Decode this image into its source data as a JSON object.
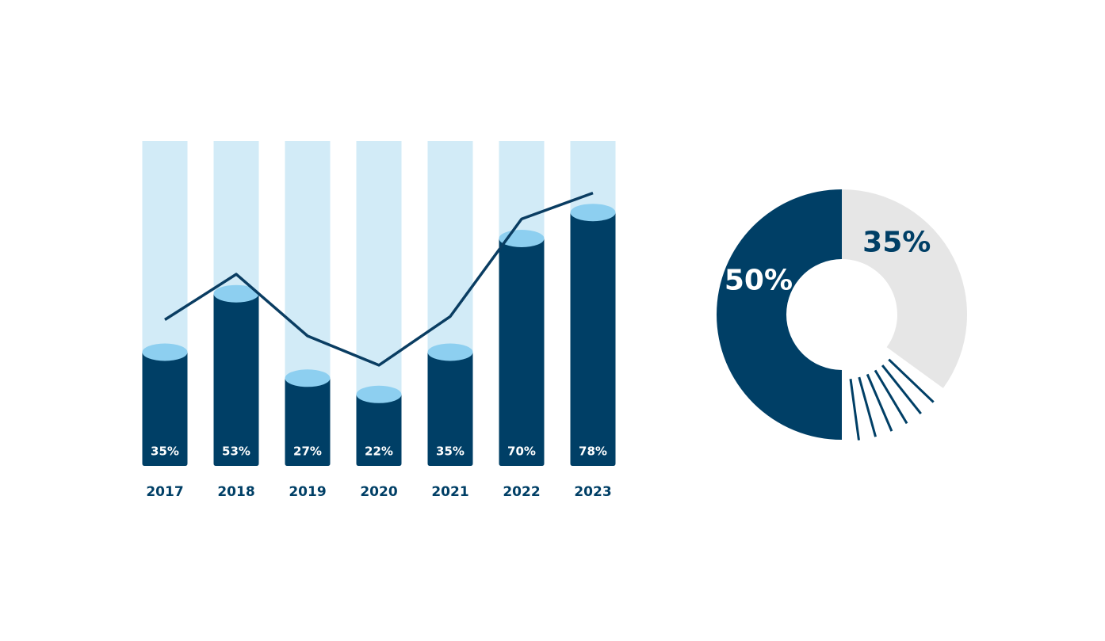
{
  "chart_data": [
    {
      "type": "bar",
      "categories": [
        "2017",
        "2018",
        "2019",
        "2020",
        "2021",
        "2022",
        "2023"
      ],
      "ylim": [
        0,
        100
      ],
      "track_color": "#d2ebf7",
      "cap_color": "#8dcff0",
      "series": [
        {
          "type": "bar",
          "color": "#003f66",
          "values": [
            35,
            53,
            27,
            22,
            35,
            70,
            78
          ],
          "value_labels": [
            "35%",
            "53%",
            "27%",
            "22%",
            "35%",
            "70%",
            "78%"
          ]
        },
        {
          "type": "line",
          "color": "#0a3d62",
          "values": [
            45,
            59,
            40,
            31,
            46,
            76,
            84
          ]
        }
      ]
    },
    {
      "type": "pie",
      "donut": true,
      "values": [
        35,
        15,
        50
      ],
      "value_labels": [
        "35%",
        null,
        "50%"
      ],
      "colors": [
        "#e6e6e6",
        "#003f66",
        "#003f66"
      ],
      "patterns": [
        "solid",
        "lines",
        "solid"
      ],
      "label_colors": [
        "#003f66",
        null,
        "#ffffff"
      ]
    }
  ]
}
